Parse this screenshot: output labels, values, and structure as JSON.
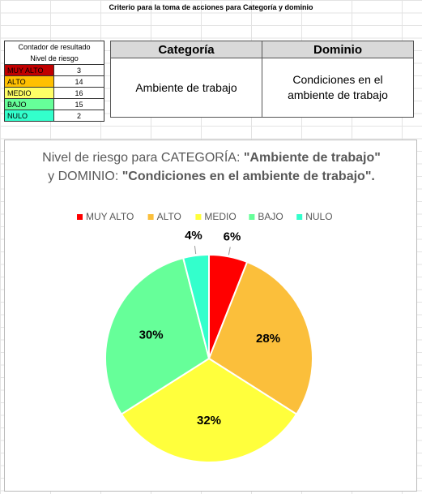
{
  "header": {
    "title": "Criterio para la toma de acciones para Categoría y dominio"
  },
  "counter": {
    "title_lines": [
      "Contador de resultado",
      "Nivel de riesgo"
    ],
    "rows": [
      [
        "MUY ALTO",
        3
      ],
      [
        "ALTO",
        14
      ],
      [
        "MEDIO",
        16
      ],
      [
        "BAJO",
        15
      ],
      [
        "NULO",
        2
      ]
    ]
  },
  "criteria": {
    "headers": [
      "Categoría",
      "Dominio"
    ],
    "row": [
      "Ambiente de trabajo",
      "Condiciones en el ambiente de trabajo"
    ]
  },
  "chart_data": {
    "type": "pie",
    "title_parts": [
      {
        "text": "Nivel de riesgo para CATEGORÍA:  ",
        "bold": false
      },
      {
        "text": "\"Ambiente de trabajo\"",
        "bold": true
      },
      {
        "text": " y DOMINIO: ",
        "bold": false
      },
      {
        "text": "\"Condiciones en el ambiente de trabajo\".",
        "bold": true
      }
    ],
    "categories": [
      "MUY ALTO",
      "ALTO",
      "MEDIO",
      "BAJO",
      "NULO"
    ],
    "values": [
      6,
      28,
      32,
      30,
      4
    ],
    "value_labels": [
      "6%",
      "28%",
      "32%",
      "30%",
      "4%"
    ],
    "colors": [
      "#ff0000",
      "#fbbf3b",
      "#ffff3c",
      "#66ff99",
      "#33ffcc"
    ],
    "legend": "top"
  }
}
